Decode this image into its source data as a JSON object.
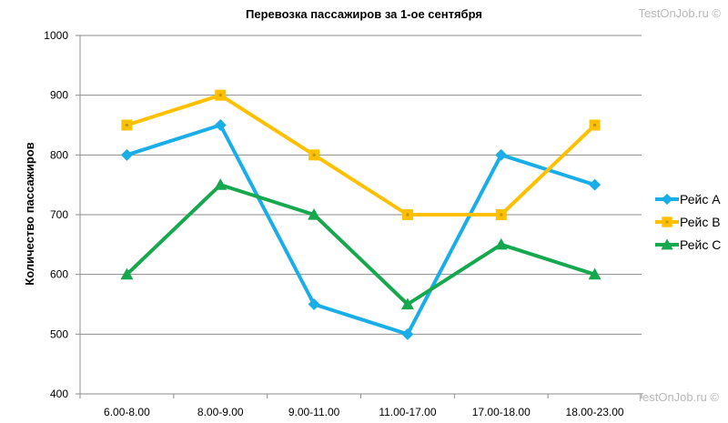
{
  "watermark": "TestOnJob.ru ©",
  "chart_data": {
    "type": "line",
    "title": "Перевозка пассажиров за 1-ое сентября",
    "xlabel": "",
    "ylabel": "Количество пассажиров",
    "ylim": [
      400,
      1000
    ],
    "yticks": [
      "400",
      "500",
      "600",
      "700",
      "800",
      "900",
      "1000"
    ],
    "categories": [
      "6.00-8.00",
      "8.00-9.00",
      "9.00-11.00",
      "11.00-17.00",
      "17.00-18.00",
      "18.00-23.00"
    ],
    "grid": "horizontal",
    "legend_position": "right",
    "series": [
      {
        "name": "Рейс A",
        "color": "#1aaee8",
        "marker": "diamond",
        "values": [
          800,
          850,
          550,
          500,
          800,
          750
        ]
      },
      {
        "name": "Рейс B",
        "color": "#ffc000",
        "marker": "square",
        "values": [
          850,
          900,
          800,
          700,
          700,
          850
        ]
      },
      {
        "name": "Рейс C",
        "color": "#16a84e",
        "marker": "triangle",
        "values": [
          600,
          750,
          700,
          550,
          650,
          600
        ]
      }
    ]
  }
}
